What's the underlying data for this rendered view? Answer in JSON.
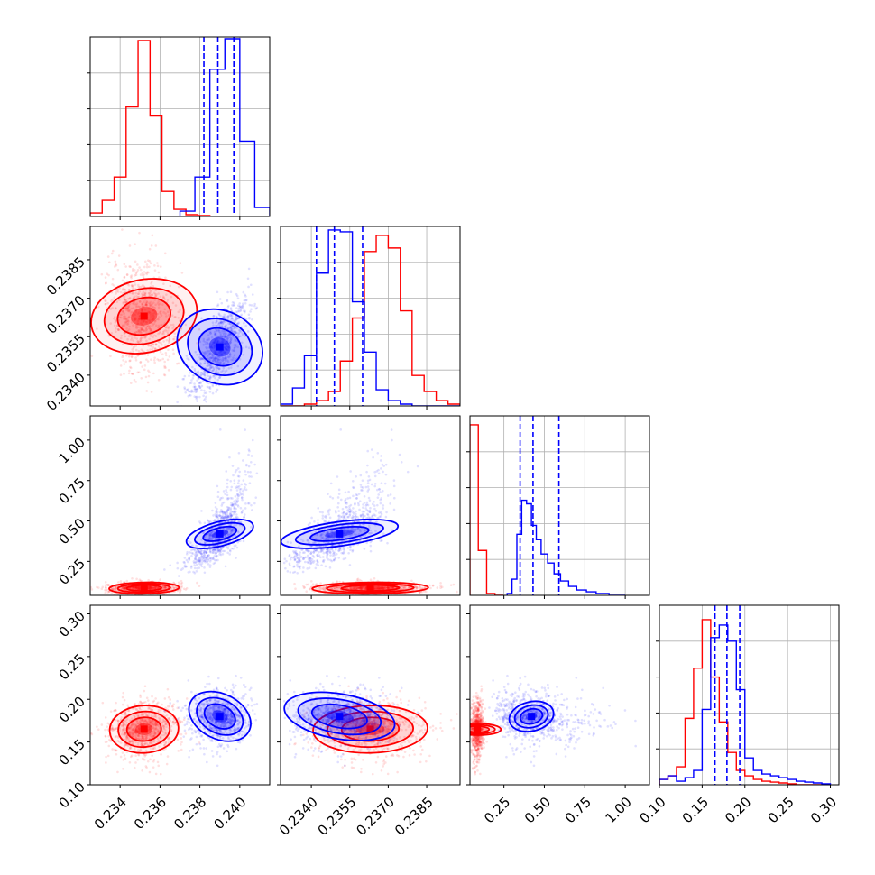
{
  "chart_data": {
    "type": "scatter",
    "title": "",
    "grid": true,
    "params": [
      {
        "range": [
          0.2325,
          0.2415
        ],
        "ticks": [
          0.234,
          0.236,
          0.238,
          0.24
        ],
        "tick_labels": [
          "0.234",
          "0.236",
          "0.238",
          "0.240"
        ]
      },
      {
        "range": [
          0.2328,
          0.2398
        ],
        "ticks": [
          0.234,
          0.2355,
          0.237,
          0.2385
        ],
        "tick_labels": [
          "0.2340",
          "0.2355",
          "0.2370",
          "0.2385"
        ]
      },
      {
        "range": [
          0.04,
          1.15
        ],
        "ticks": [
          0.25,
          0.5,
          0.75,
          1.0
        ],
        "tick_labels": [
          "0.25",
          "0.50",
          "0.75",
          "1.00"
        ]
      },
      {
        "range": [
          0.1,
          0.31
        ],
        "ticks": [
          0.1,
          0.15,
          0.2,
          0.25,
          0.3
        ],
        "tick_labels": [
          "0.10",
          "0.15",
          "0.20",
          "0.25",
          "0.30"
        ]
      }
    ],
    "series": [
      {
        "color": "#ff0000",
        "mean": [
          0.2352,
          0.2363,
          0.085,
          0.165
        ],
        "sd": [
          0.00085,
          0.0011,
          0.018,
          0.014
        ],
        "hist": [
          {
            "edges": [
              0.2325,
              0.2331,
              0.2337,
              0.2343,
              0.2349,
              0.2355,
              0.2361,
              0.2367,
              0.2373,
              0.2379,
              0.2385,
              0.2391,
              0.2397
            ],
            "counts": [
              0.02,
              0.09,
              0.22,
              0.61,
              0.98,
              0.56,
              0.14,
              0.04,
              0.01,
              0.005,
              0,
              0
            ]
          },
          {
            "edges": [
              0.2328,
              0.23327,
              0.23373,
              0.2342,
              0.23467,
              0.23513,
              0.2356,
              0.23607,
              0.23653,
              0.237,
              0.23747,
              0.23793,
              0.2384,
              0.23887,
              0.23933,
              0.2398
            ],
            "counts": [
              0,
              0,
              0.01,
              0.03,
              0.08,
              0.25,
              0.49,
              0.86,
              0.95,
              0.88,
              0.53,
              0.17,
              0.08,
              0.03,
              0.01
            ]
          },
          {
            "edges": [
              0.04,
              0.0915,
              0.143,
              0.1945,
              0.246
            ],
            "counts": [
              0.95,
              0.25,
              0.01,
              0
            ]
          },
          {
            "edges": [
              0.1,
              0.11,
              0.12,
              0.13,
              0.14,
              0.15,
              0.16,
              0.17,
              0.18,
              0.19,
              0.2,
              0.21,
              0.22,
              0.23,
              0.24,
              0.25,
              0.26,
              0.27,
              0.28,
              0.29,
              0.3
            ],
            "counts": [
              0.03,
              0.05,
              0.1,
              0.37,
              0.65,
              0.92,
              0.6,
              0.35,
              0.18,
              0.08,
              0.05,
              0.03,
              0.02,
              0.015,
              0.01,
              0.005,
              0,
              0,
              0,
              0
            ]
          }
        ]
      },
      {
        "color": "#0000ff",
        "mean": [
          0.239,
          0.2351,
          0.42,
          0.18
        ],
        "sd": [
          0.00075,
          0.001,
          0.13,
          0.014
        ],
        "quantiles": [
          [
            0.2382,
            0.2389,
            0.2397
          ],
          [
            0.2342,
            0.2349,
            0.236
          ],
          [
            0.35,
            0.43,
            0.59
          ],
          [
            0.165,
            0.179,
            0.194
          ]
        ],
        "hist": [
          {
            "edges": [
              0.2325,
              0.23325,
              0.234,
              0.23475,
              0.2355,
              0.23625,
              0.237,
              0.23775,
              0.2385,
              0.23925,
              0.24,
              0.24075,
              0.2415
            ],
            "counts": [
              0,
              0,
              0,
              0,
              0,
              0,
              0.03,
              0.22,
              0.82,
              0.99,
              0.42,
              0.05
            ]
          },
          {
            "edges": [
              0.2328,
              0.23327,
              0.23373,
              0.2342,
              0.23467,
              0.23513,
              0.2356,
              0.23607,
              0.23653,
              0.237,
              0.23747,
              0.23793,
              0.2384,
              0.23887,
              0.23933,
              0.2398
            ],
            "counts": [
              0.01,
              0.1,
              0.28,
              0.74,
              0.98,
              0.97,
              0.58,
              0.3,
              0.09,
              0.03,
              0.01,
              0,
              0,
              0,
              0
            ]
          },
          {
            "edges": [
              0.27,
              0.3,
              0.33,
              0.36,
              0.39,
              0.42,
              0.45,
              0.48,
              0.52,
              0.56,
              0.6,
              0.65,
              0.7,
              0.76,
              0.82,
              0.9,
              1.0
            ],
            "counts": [
              0.01,
              0.09,
              0.34,
              0.53,
              0.51,
              0.39,
              0.31,
              0.23,
              0.18,
              0.12,
              0.08,
              0.05,
              0.03,
              0.02,
              0.01,
              0
            ]
          },
          {
            "edges": [
              0.1,
              0.11,
              0.12,
              0.13,
              0.14,
              0.15,
              0.16,
              0.17,
              0.18,
              0.19,
              0.2,
              0.21,
              0.22,
              0.23,
              0.24,
              0.25,
              0.26,
              0.27,
              0.28,
              0.29,
              0.3
            ],
            "counts": [
              0.03,
              0.05,
              0.02,
              0.04,
              0.08,
              0.42,
              0.82,
              0.89,
              0.8,
              0.53,
              0.15,
              0.08,
              0.06,
              0.05,
              0.04,
              0.03,
              0.02,
              0.015,
              0.01,
              0.005
            ]
          }
        ]
      }
    ]
  }
}
